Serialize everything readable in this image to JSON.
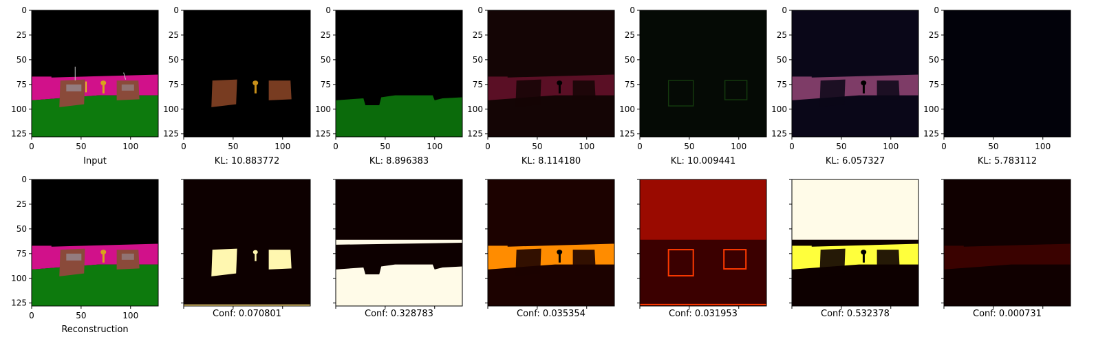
{
  "figure": {
    "axis": {
      "x_ticks": [
        0,
        50,
        100
      ],
      "y_ticks": [
        0,
        25,
        50,
        75,
        100,
        125
      ],
      "xlim": [
        0,
        128
      ],
      "ylim": [
        128,
        0
      ]
    },
    "top_row": [
      {
        "caption": "Input",
        "kind": "input"
      },
      {
        "caption": "KL: 10.883772",
        "kind": "slot",
        "tint": "#a0502c",
        "regions": [
          "objects"
        ],
        "background": "#000000",
        "opacity": 0.75
      },
      {
        "caption": "KL: 8.896383",
        "kind": "slot",
        "tint": "#0b6b0b",
        "regions": [
          "floor"
        ],
        "background": "#000000",
        "opacity": 1.0
      },
      {
        "caption": "KL: 8.114180",
        "kind": "slot",
        "tint": "#5a0f25",
        "regions": [
          "wall"
        ],
        "background": "#140505",
        "opacity": 1.0
      },
      {
        "caption": "KL: 10.009441",
        "kind": "slot",
        "tint": "#1e5a14",
        "regions": [
          "outlines"
        ],
        "background": "#050a05",
        "opacity": 0.6
      },
      {
        "caption": "KL: 6.057327",
        "kind": "slot",
        "tint": "#7e3c67",
        "regions": [
          "wall"
        ],
        "background": "#0a0718",
        "opacity": 1.0
      },
      {
        "caption": "KL: 5.783112",
        "kind": "slot",
        "tint": "#000000",
        "regions": [],
        "background": "#02020a",
        "opacity": 1.0
      }
    ],
    "bottom_row": [
      {
        "caption": "Reconstruction",
        "kind": "reconstruction"
      },
      {
        "caption": "Conf: 0.070801",
        "kind": "mask",
        "background": "#0d0000",
        "bands": [
          {
            "region": "objects",
            "color": "#fff7b0"
          },
          {
            "region": "bottom-line",
            "color": "#ffe07a"
          }
        ]
      },
      {
        "caption": "Conf: 0.328783",
        "kind": "mask",
        "background": "#0d0000",
        "bands": [
          {
            "region": "floor",
            "color": "#fffbe8"
          },
          {
            "region": "band-top",
            "color": "#fffbe8"
          }
        ]
      },
      {
        "caption": "Conf: 0.035354",
        "kind": "mask",
        "background": "#1c0200",
        "bands": [
          {
            "region": "wall",
            "color": "#ff8c00"
          }
        ]
      },
      {
        "caption": "Conf: 0.031953",
        "kind": "mask",
        "background": "#3b0000",
        "bands": [
          {
            "region": "sky",
            "color": "#9a0a00"
          },
          {
            "region": "outlines",
            "color": "#ff3a00"
          }
        ]
      },
      {
        "caption": "Conf: 0.532378",
        "kind": "mask",
        "background": "#0d0000",
        "bands": [
          {
            "region": "sky",
            "color": "#fffbe8"
          },
          {
            "region": "wall",
            "color": "#ffff3c"
          }
        ]
      },
      {
        "caption": "Conf: 0.000731",
        "kind": "mask",
        "background": "#100000",
        "bands": [
          {
            "region": "wall-faint",
            "color": "#3a0200"
          }
        ]
      }
    ],
    "scene_colors": {
      "sky": "#000000",
      "wall": "#d1118a",
      "floor": "#0d7a0d",
      "box": "#8a4a3a",
      "box_window": "#9aa6b8",
      "key": "#d9a21b"
    }
  }
}
